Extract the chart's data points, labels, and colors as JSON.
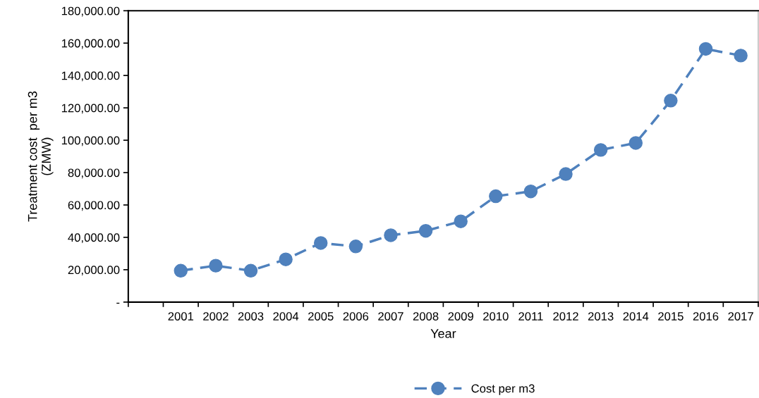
{
  "chart_data": {
    "type": "line",
    "xlabel": "Year",
    "ylabel": "Treatment cost  per m3\n(ZMW)",
    "categories": [
      null,
      "2001",
      "2002",
      "2003",
      "2004",
      "2005",
      "2006",
      "2007",
      "2008",
      "2009",
      "2010",
      "2011",
      "2012",
      "2013",
      "2014",
      "2015",
      "2016",
      "2017"
    ],
    "series": [
      {
        "name": "Cost per m3",
        "color": "#4f81bd",
        "values": [
          null,
          19400,
          22500,
          19400,
          26400,
          36500,
          34400,
          41300,
          44000,
          49900,
          65400,
          68400,
          79100,
          94000,
          98300,
          124500,
          156400,
          152300
        ]
      }
    ],
    "ylim": [
      0,
      180000
    ],
    "yticks": [
      {
        "value": 0,
        "label": "-"
      },
      {
        "value": 20000,
        "label": "20,000.00"
      },
      {
        "value": 40000,
        "label": "40,000.00"
      },
      {
        "value": 60000,
        "label": "60,000.00"
      },
      {
        "value": 80000,
        "label": "80,000.00"
      },
      {
        "value": 100000,
        "label": "100,000.00"
      },
      {
        "value": 120000,
        "label": "120,000.00"
      },
      {
        "value": 140000,
        "label": "140,000.00"
      },
      {
        "value": 160000,
        "label": "160,000.00"
      },
      {
        "value": 180000,
        "label": "180,000.00"
      }
    ],
    "grid": false,
    "legend": "bottom",
    "marker": "circle",
    "line_style": "dashed"
  }
}
